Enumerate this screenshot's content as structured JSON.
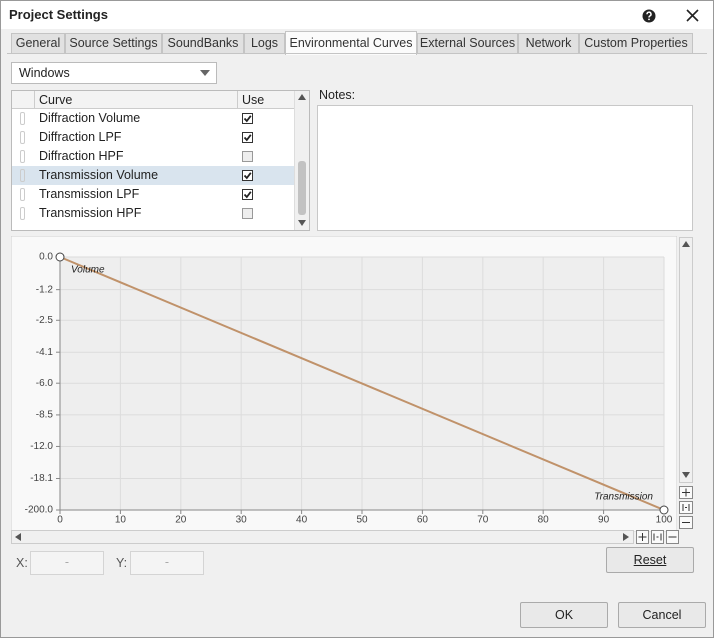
{
  "window": {
    "title": "Project Settings"
  },
  "tabs": [
    {
      "label": "General",
      "selected": false
    },
    {
      "label": "Source Settings",
      "selected": false
    },
    {
      "label": "SoundBanks",
      "selected": false
    },
    {
      "label": "Logs",
      "selected": false
    },
    {
      "label": "Environmental Curves",
      "selected": true
    },
    {
      "label": "External Sources",
      "selected": false
    },
    {
      "label": "Network",
      "selected": false
    },
    {
      "label": "Custom Properties",
      "selected": false
    }
  ],
  "platform": "Windows",
  "curve_table": {
    "headers": [
      "Curve",
      "Use"
    ],
    "rows": [
      {
        "name": "Diffraction Volume",
        "use": true,
        "selected": false
      },
      {
        "name": "Diffraction LPF",
        "use": true,
        "selected": false
      },
      {
        "name": "Diffraction HPF",
        "use": false,
        "selected": false
      },
      {
        "name": "Transmission Volume",
        "use": true,
        "selected": true
      },
      {
        "name": "Transmission LPF",
        "use": true,
        "selected": false
      },
      {
        "name": "Transmission HPF",
        "use": false,
        "selected": false
      }
    ]
  },
  "notes": {
    "label": "Notes:"
  },
  "chart_data": {
    "type": "line",
    "x_label": "Transmission",
    "y_label": "Volume",
    "x": [
      0,
      100
    ],
    "values": [
      0.0,
      -200.0
    ],
    "color": "#c0926a",
    "xlim": [
      0,
      100
    ],
    "xticks": [
      0,
      10,
      20,
      30,
      40,
      50,
      60,
      70,
      80,
      90,
      100
    ],
    "ylim": [
      0,
      -200
    ],
    "yscale": "amplitude-db",
    "yticks": [
      {
        "value": 0,
        "label": "0.0"
      },
      -1.2,
      -2.5,
      -4.1,
      {
        "value": -6,
        "label": "-6.0"
      },
      -8.5,
      {
        "value": -12,
        "label": "-12.0"
      },
      -18.1,
      {
        "value": -200,
        "label": "-200.0"
      }
    ],
    "grid": true
  },
  "fields": {
    "x_label": "X:",
    "x_value": "-",
    "y_label": "Y:",
    "y_value": "-"
  },
  "buttons": {
    "reset": "Reset",
    "ok": "OK",
    "cancel": "Cancel"
  }
}
